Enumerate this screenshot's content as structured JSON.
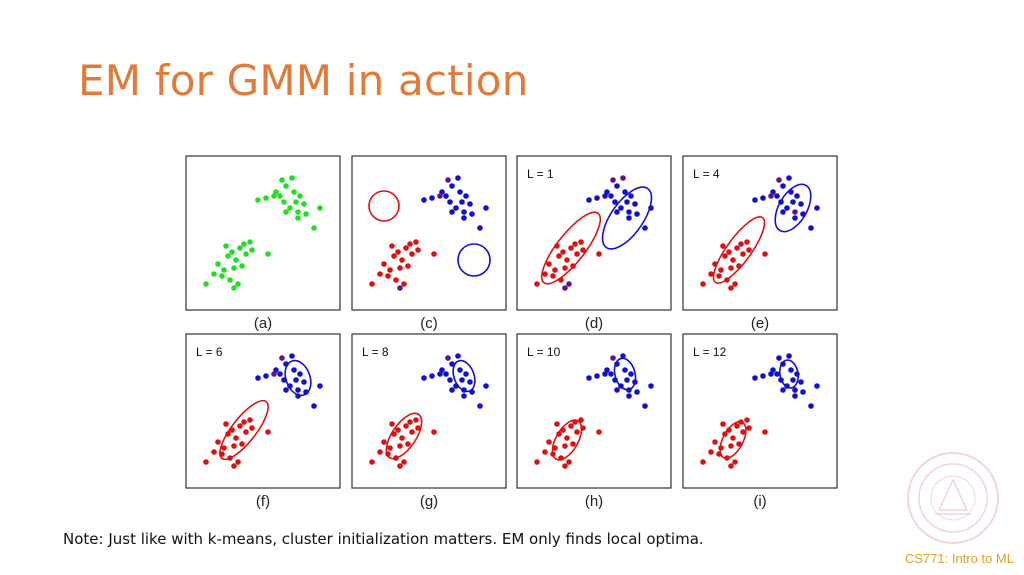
{
  "slide": {
    "title": "EM for GMM in action",
    "note": "Note: Just like with k-means, cluster initialization matters. EM only finds local optima.",
    "footer": "CS771: Intro to ML"
  },
  "colors": {
    "title": "#e07b39",
    "footer": "#e0a020",
    "green": "#22dd22",
    "red": "#dd1111",
    "blue": "#1111cc",
    "purple": "#661188"
  },
  "icons": {
    "seal": "university-seal-watermark"
  },
  "panels": [
    {
      "caption": "(a)",
      "label": ""
    },
    {
      "caption": "(c)",
      "label": ""
    },
    {
      "caption": "(d)",
      "label": "L = 1"
    },
    {
      "caption": "(e)",
      "label": "L = 4"
    },
    {
      "caption": "(f)",
      "label": "L = 6"
    },
    {
      "caption": "(g)",
      "label": "L = 8"
    },
    {
      "caption": "(h)",
      "label": "L = 10"
    },
    {
      "caption": "(i)",
      "label": "L = 12"
    }
  ]
}
